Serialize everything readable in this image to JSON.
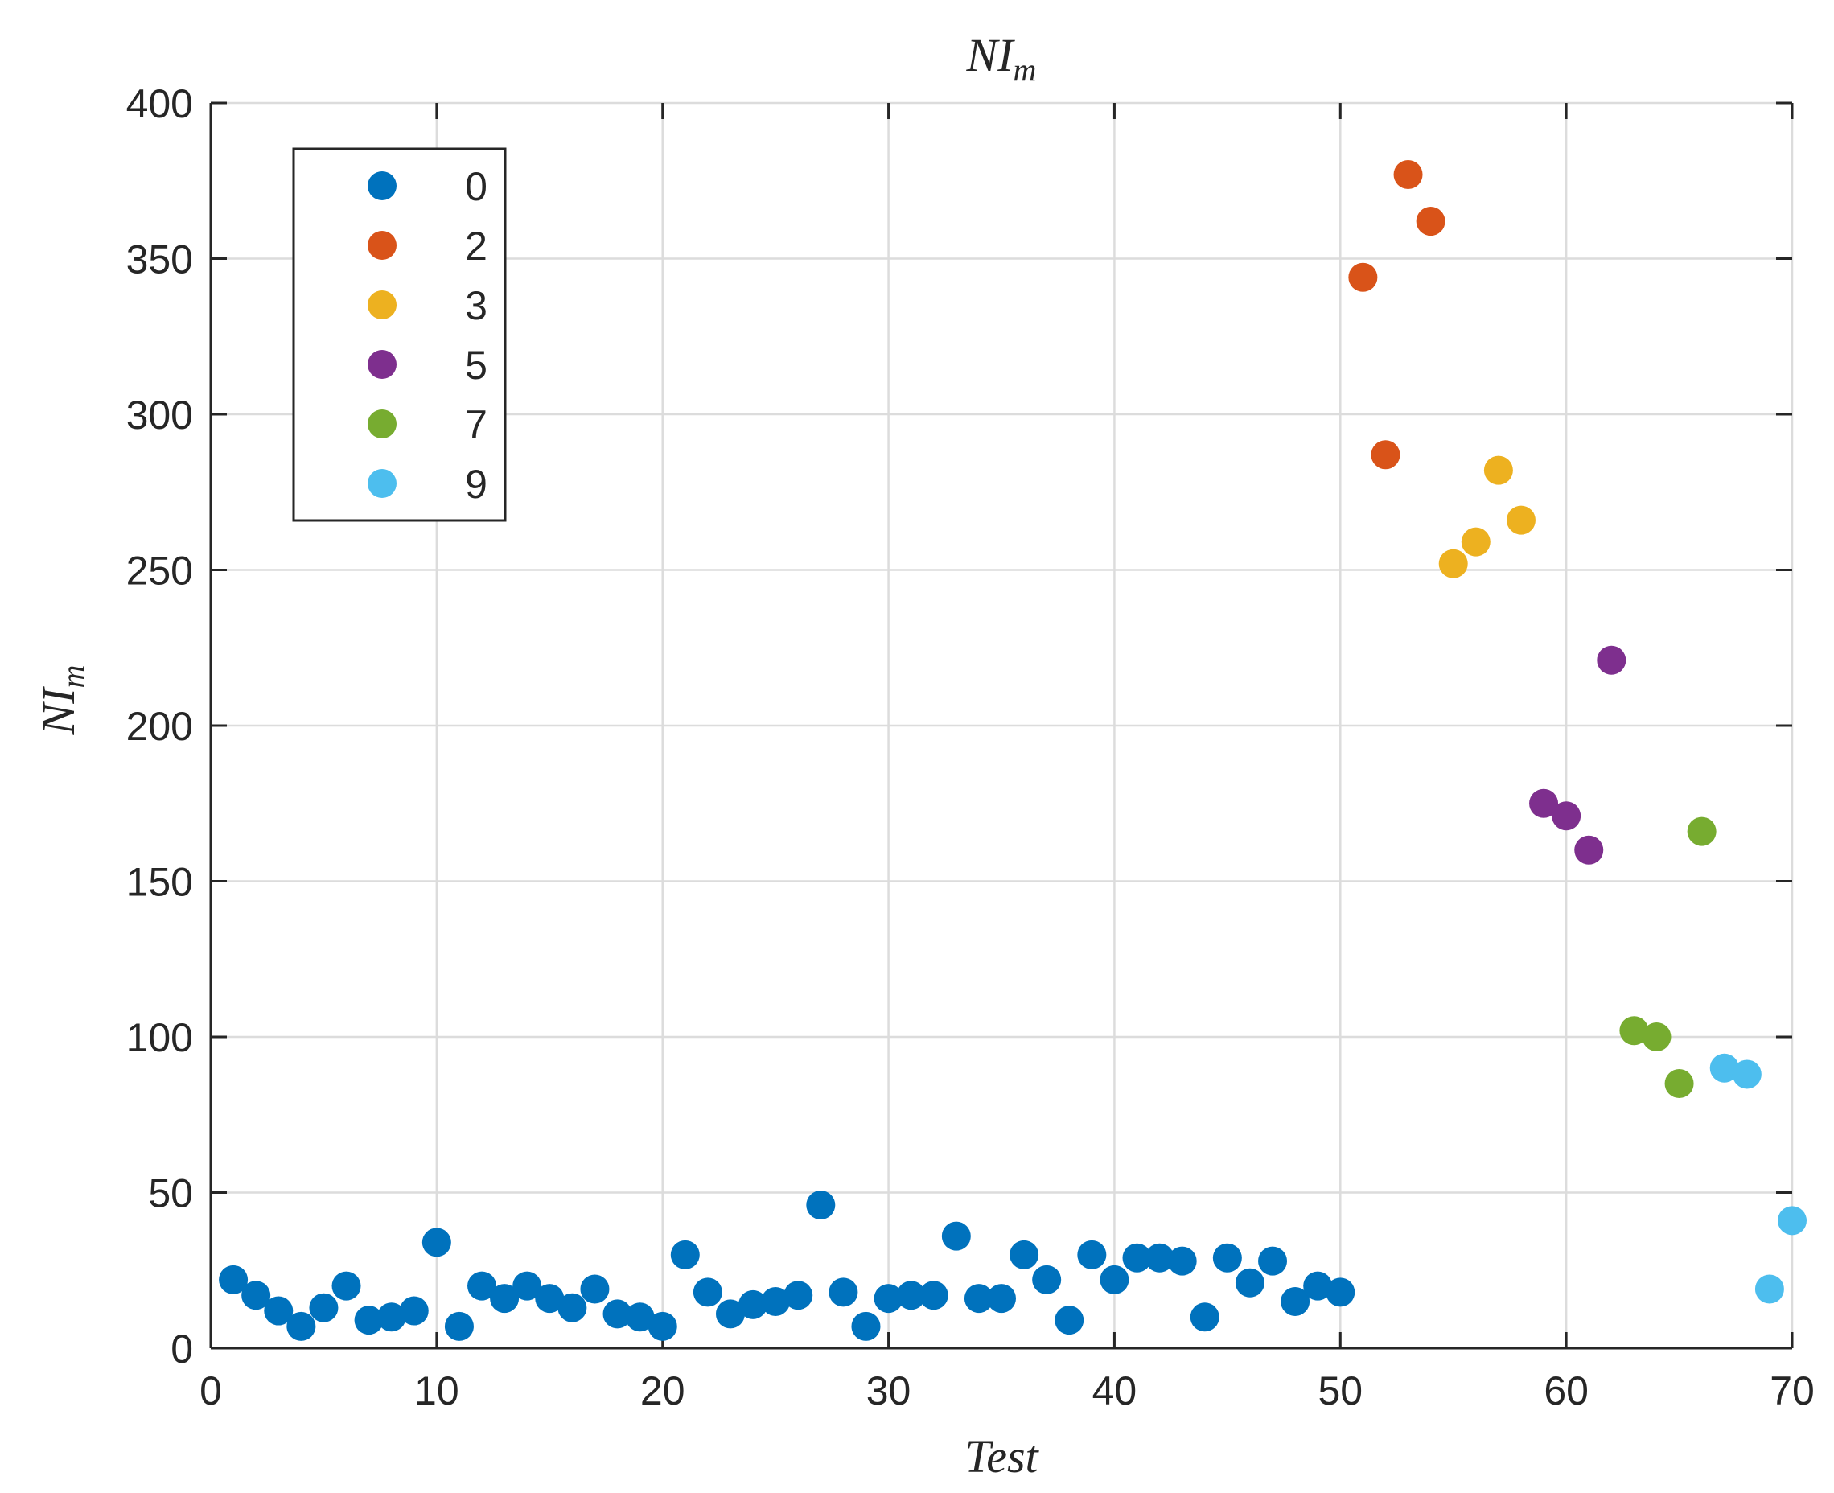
{
  "chart_data": {
    "type": "scatter",
    "title": "NI",
    "title_subscript": "m",
    "xlabel": "Test",
    "ylabel": "NI",
    "ylabel_subscript": "m",
    "xlim": [
      0,
      70
    ],
    "ylim": [
      0,
      400
    ],
    "xticks": [
      0,
      10,
      20,
      30,
      40,
      50,
      60,
      70
    ],
    "yticks": [
      0,
      50,
      100,
      150,
      200,
      250,
      300,
      350,
      400
    ],
    "xtick_labels": [
      "0",
      "10",
      "20",
      "30",
      "40",
      "50",
      "60",
      "70"
    ],
    "ytick_labels": [
      "0",
      "50",
      "100",
      "150",
      "200",
      "250",
      "300",
      "350",
      "400"
    ],
    "grid": true,
    "legend_position": "top-left",
    "series": [
      {
        "name": "0",
        "color": "#0072BD",
        "x": [
          1,
          2,
          3,
          4,
          5,
          6,
          7,
          8,
          9,
          10,
          11,
          12,
          13,
          14,
          15,
          16,
          17,
          18,
          19,
          20,
          21,
          22,
          23,
          24,
          25,
          26,
          27,
          28,
          29,
          30,
          31,
          32,
          33,
          34,
          35,
          36,
          37,
          38,
          39,
          40,
          41,
          42,
          43,
          44,
          45,
          46,
          47,
          48,
          49,
          50
        ],
        "y": [
          22,
          17,
          12,
          7,
          13,
          20,
          9,
          10,
          12,
          34,
          7,
          20,
          16,
          20,
          16,
          13,
          19,
          11,
          10,
          7,
          30,
          18,
          11,
          14,
          15,
          17,
          46,
          18,
          7,
          16,
          17,
          17,
          36,
          16,
          16,
          30,
          22,
          9,
          30,
          22,
          29,
          29,
          28,
          10,
          29,
          21,
          28,
          15,
          20,
          18
        ]
      },
      {
        "name": "2",
        "color": "#D95319",
        "x": [
          51,
          52,
          53,
          54
        ],
        "y": [
          344,
          287,
          377,
          362
        ]
      },
      {
        "name": "3",
        "color": "#EDB120",
        "x": [
          55,
          56,
          57,
          58
        ],
        "y": [
          252,
          259,
          282,
          266
        ]
      },
      {
        "name": "5",
        "color": "#7E2F8E",
        "x": [
          59,
          60,
          61,
          62
        ],
        "y": [
          175,
          171,
          160,
          221
        ]
      },
      {
        "name": "7",
        "color": "#77AC30",
        "x": [
          63,
          64,
          65,
          66
        ],
        "y": [
          102,
          100,
          85,
          166
        ]
      },
      {
        "name": "9",
        "color": "#4DBEEE",
        "x": [
          67,
          68,
          69,
          70
        ],
        "y": [
          90,
          88,
          19,
          41
        ]
      }
    ]
  }
}
